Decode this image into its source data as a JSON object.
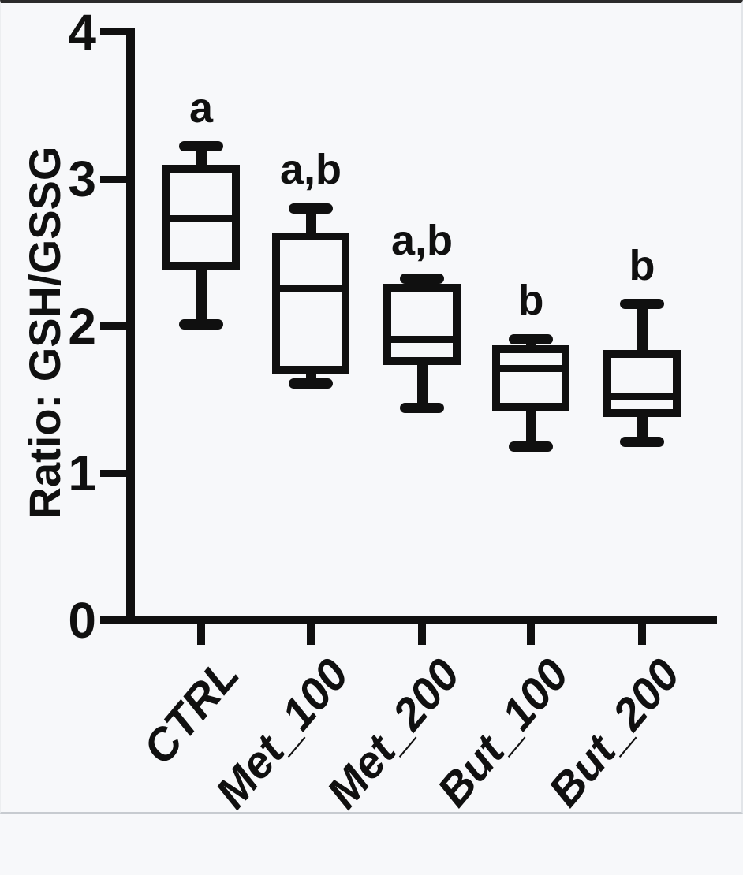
{
  "page": {
    "background": "#f7f8fa",
    "ink": "#101010"
  },
  "chart_data": {
    "type": "box",
    "title": "",
    "ylabel": "Ratio: GSH/GSSG",
    "xlabel": "",
    "ylim": [
      0,
      4
    ],
    "yticks": [
      0,
      1,
      2,
      3,
      4
    ],
    "grid": false,
    "legend": "none",
    "box_fill": "#f7f8fa",
    "box_stroke": "#101010",
    "categories": [
      "CTRL",
      "Met_100",
      "Met_200",
      "But_100",
      "But_200"
    ],
    "series": [
      {
        "category": "CTRL",
        "min": 2.01,
        "q1": 2.41,
        "median": 2.73,
        "q3": 3.07,
        "max": 3.22,
        "annotation": "a"
      },
      {
        "category": "Met_100",
        "min": 1.61,
        "q1": 1.7,
        "median": 2.25,
        "q3": 2.61,
        "max": 2.8,
        "annotation": "a,b"
      },
      {
        "category": "Met_200",
        "min": 1.44,
        "q1": 1.76,
        "median": 1.91,
        "q3": 2.26,
        "max": 2.32,
        "annotation": "a,b"
      },
      {
        "category": "But_100",
        "min": 1.18,
        "q1": 1.45,
        "median": 1.71,
        "q3": 1.84,
        "max": 1.91,
        "annotation": "b"
      },
      {
        "category": "But_200",
        "min": 1.21,
        "q1": 1.41,
        "median": 1.52,
        "q3": 1.81,
        "max": 2.15,
        "annotation": "b"
      }
    ]
  }
}
